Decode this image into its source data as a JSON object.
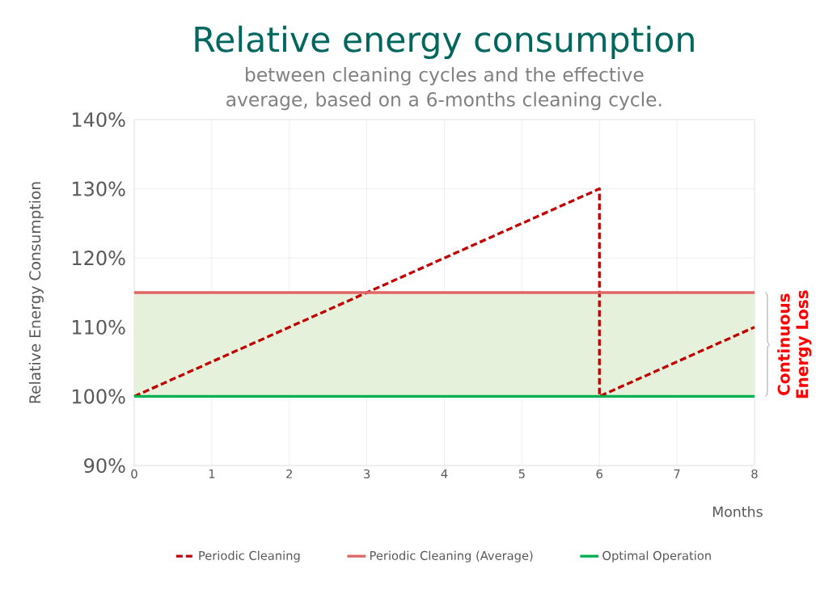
{
  "chart_data": {
    "type": "line",
    "title": "Relative energy consumption",
    "subtitle": "between cleaning cycles and the effective average, based on a 6-months cleaning cycle.",
    "xlabel": "Months",
    "ylabel": "Relative Energy Consumption",
    "xlim": [
      0,
      8
    ],
    "xticks": [
      0,
      1,
      2,
      3,
      4,
      5,
      6,
      7,
      8
    ],
    "ylim": [
      90,
      140
    ],
    "yticks": [
      {
        "value": 90,
        "label": "90%"
      },
      {
        "value": 100,
        "label": "100%"
      },
      {
        "value": 110,
        "label": "110%"
      },
      {
        "value": 120,
        "label": "120%"
      },
      {
        "value": 130,
        "label": "130%"
      },
      {
        "value": 140,
        "label": "140%"
      }
    ],
    "grid": true,
    "legend": "bottom",
    "marker": "none",
    "series": [
      {
        "name": "Periodic Cleaning",
        "color": "#c00000",
        "line_style": "dashed",
        "x": [
          0,
          6,
          6,
          8
        ],
        "values": [
          100,
          130,
          100,
          110
        ]
      },
      {
        "name": "Periodic Cleaning (Average)",
        "color": "#e06666",
        "line_style": "solid",
        "x": [
          0,
          8
        ],
        "values": [
          115,
          115
        ]
      },
      {
        "name": "Optimal Operation",
        "color": "#00b050",
        "line_style": "solid",
        "x": [
          0,
          8
        ],
        "values": [
          100,
          100
        ]
      }
    ],
    "bands": [
      {
        "axis": "y",
        "from": 100,
        "to": 115,
        "label": "Continuous Energy Loss",
        "color": "#e6f1dc"
      }
    ]
  }
}
